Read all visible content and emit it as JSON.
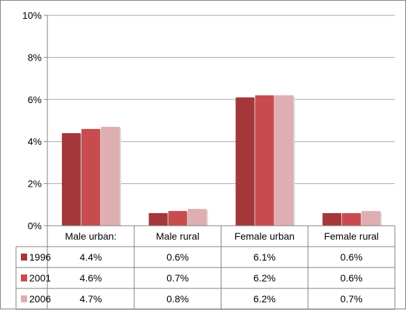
{
  "chart_data": {
    "type": "bar",
    "title": "",
    "xlabel": "",
    "ylabel": "",
    "categories": [
      "Male urban:",
      "Male rural",
      "Female urban",
      "Female rural"
    ],
    "series": [
      {
        "name": "1996",
        "color": "#a4373a",
        "values": [
          4.4,
          0.6,
          6.1,
          0.6
        ]
      },
      {
        "name": "2001",
        "color": "#c84c4f",
        "values": [
          4.6,
          0.7,
          6.2,
          0.6
        ]
      },
      {
        "name": "2006",
        "color": "#dfaeb0",
        "values": [
          4.7,
          0.8,
          6.2,
          0.7
        ]
      }
    ],
    "table_rows": [
      [
        "4.4%",
        "0.6%",
        "6.1%",
        "0.6%"
      ],
      [
        "4.6%",
        "0.7%",
        "6.2%",
        "0.6%"
      ],
      [
        "4.7%",
        "0.8%",
        "6.2%",
        "0.7%"
      ]
    ],
    "ylim": [
      0,
      10
    ],
    "yticks": [
      "0%",
      "2%",
      "4%",
      "6%",
      "8%",
      "10%"
    ],
    "grid": true,
    "legend": "data-table"
  }
}
